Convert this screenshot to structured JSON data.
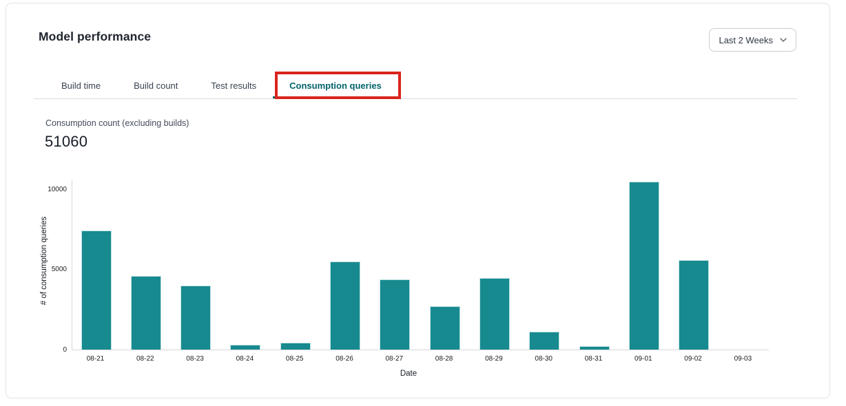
{
  "header": {
    "title": "Model performance",
    "time_range_selector": {
      "value": "Last 2 Weeks",
      "icon": "chevron-down-icon"
    }
  },
  "tabs": [
    {
      "label": "Build time",
      "active": false
    },
    {
      "label": "Build count",
      "active": false
    },
    {
      "label": "Test results",
      "active": false
    },
    {
      "label": "Consumption queries",
      "active": true,
      "highlighted": true
    }
  ],
  "annotation": {
    "shape": "rectangle",
    "color": "#d9251d",
    "target": "Consumption queries tab"
  },
  "metric": {
    "label": "Consumption count (excluding builds)",
    "value": "51060"
  },
  "chart_data": {
    "type": "bar",
    "title": "",
    "categories": [
      "08-21",
      "08-22",
      "08-23",
      "08-24",
      "08-25",
      "08-26",
      "08-27",
      "08-28",
      "08-29",
      "08-30",
      "08-31",
      "09-01",
      "09-02",
      "09-03"
    ],
    "values": [
      7400,
      4600,
      4000,
      290,
      440,
      5480,
      4350,
      2700,
      4450,
      1130,
      200,
      10470,
      5550,
      0
    ],
    "xlabel": "Date",
    "ylabel": "# of consumption queries",
    "ylim": [
      0,
      10580
    ],
    "yticks": [
      0,
      5000,
      10000
    ],
    "grid": false,
    "legend": false,
    "bar_color": "#178a8f"
  }
}
